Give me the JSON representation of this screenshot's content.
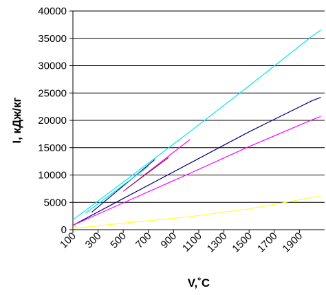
{
  "chart_data": {
    "type": "line",
    "xlabel": "V,˚С",
    "ylabel": "I, кДж/кг",
    "xlim": [
      100,
      2100
    ],
    "ylim": [
      0,
      40000
    ],
    "x_ticks": [
      "100",
      "300",
      "500",
      "700",
      "900",
      "1100",
      "1300",
      "1500",
      "1700",
      "1900"
    ],
    "y_ticks": [
      "0",
      "5000",
      "10000",
      "15000",
      "20000",
      "25000",
      "30000",
      "35000",
      "40000"
    ],
    "grid": "horizontal",
    "series": [
      {
        "color": "#00e5ee",
        "x": [
          100,
          500,
          1000,
          1500,
          2000,
          2070
        ],
        "y": [
          1800,
          8700,
          17400,
          26300,
          35400,
          36500
        ]
      },
      {
        "color": "#000080",
        "x": [
          100,
          500,
          1000,
          1500,
          2000,
          2070
        ],
        "y": [
          800,
          5700,
          11800,
          17900,
          23600,
          24200
        ]
      },
      {
        "color": "#ff00ff",
        "x": [
          100,
          500,
          1000,
          1500,
          2000,
          2070
        ],
        "y": [
          800,
          4900,
          10000,
          15200,
          20100,
          20700
        ]
      },
      {
        "color": "#ffff33",
        "x": [
          100,
          500,
          1000,
          1500,
          2000,
          2070
        ],
        "y": [
          200,
          1200,
          2300,
          3800,
          5900,
          6100
        ]
      },
      {
        "color": "#000080",
        "x": [
          250,
          750
        ],
        "y": [
          3200,
          12800
        ]
      },
      {
        "color": "#00e5ee",
        "x": [
          200,
          700
        ],
        "y": [
          3000,
          11600
        ]
      },
      {
        "color": "#ff00ff",
        "x": [
          500,
          1030
        ],
        "y": [
          7000,
          16500
        ]
      },
      {
        "color": "#8b2222",
        "x": [
          520,
          860
        ],
        "y": [
          7400,
          13200
        ]
      }
    ]
  }
}
